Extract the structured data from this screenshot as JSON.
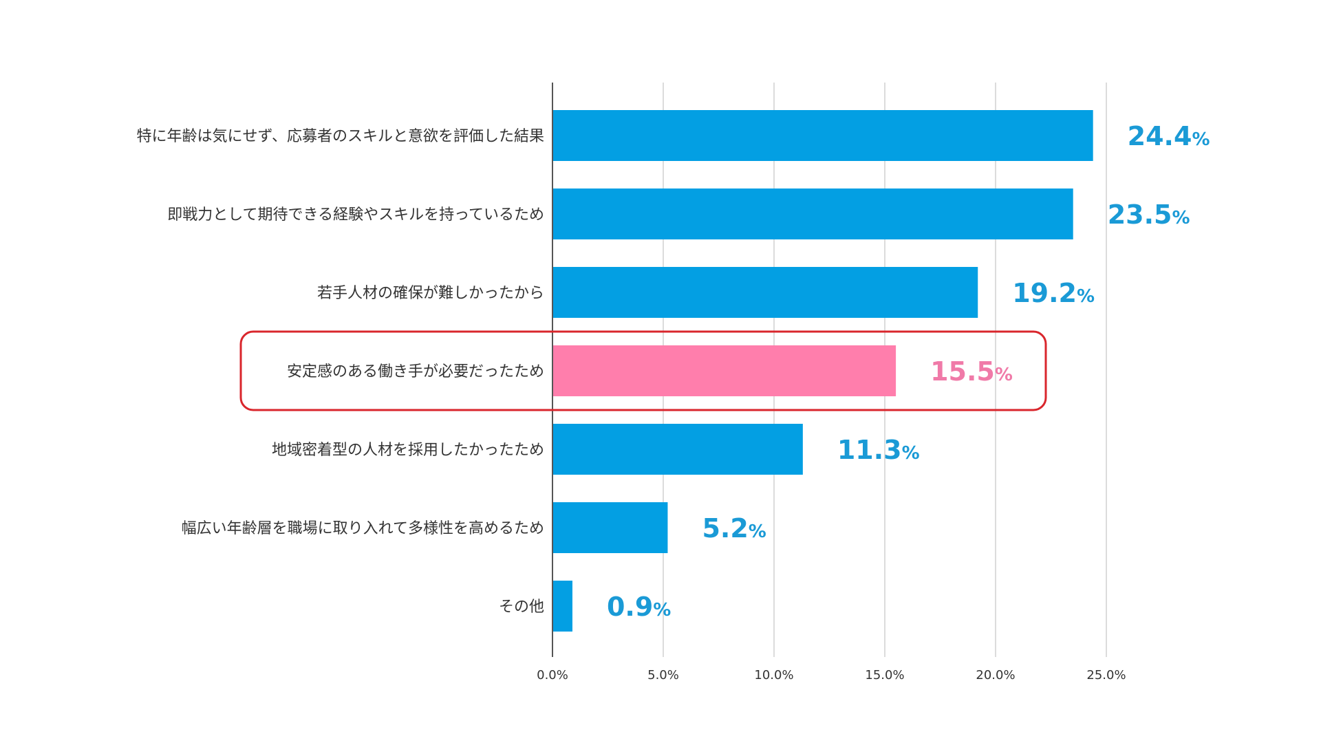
{
  "chart_data": {
    "type": "bar",
    "orientation": "horizontal",
    "categories": [
      "特に年齢は気にせず、応募者のスキルと意欲を評価した結果",
      "即戦力として期待できる経験やスキルを持っているため",
      "若手人材の確保が難しかったから",
      "安定感のある働き手が必要だったため",
      "地域密着型の人材を採用したかったため",
      "幅広い年齢層を職場に取り入れて多様性を高めるため",
      "その他"
    ],
    "values": [
      24.4,
      23.5,
      19.2,
      15.5,
      11.3,
      5.2,
      0.9
    ],
    "value_labels": [
      "24.4",
      "23.5",
      "19.2",
      "15.5",
      "11.3",
      "5.2",
      "0.9"
    ],
    "value_unit": "%",
    "highlight_index": 3,
    "xlim": [
      0,
      25
    ],
    "x_ticks": [
      "0.0%",
      "5.0%",
      "10.0%",
      "15.0%",
      "20.0%",
      "25.0%"
    ],
    "grid": true,
    "title": "",
    "xlabel": "",
    "ylabel": "",
    "colors": {
      "bar": "#039fe3",
      "highlight_bar": "#ff7eac",
      "value_label": "#1a9ad6",
      "highlight_value_label": "#f07aa8",
      "highlight_box": "#d9262c",
      "grid": "#d0d0d0",
      "axis": "#555555"
    }
  }
}
